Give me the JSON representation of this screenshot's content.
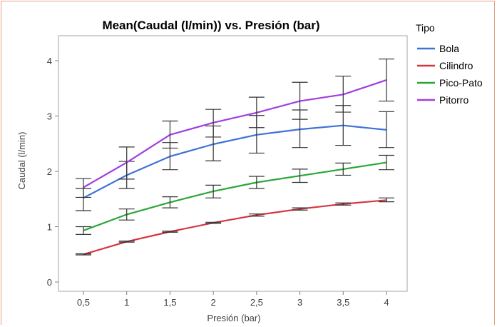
{
  "chart_data": {
    "type": "line",
    "title": "Mean(Caudal (l/min)) vs. Presión (bar)",
    "xlabel": "Presión (bar)",
    "ylabel": "Caudal (l/min)",
    "x": [
      0.5,
      1,
      1.5,
      2,
      2.5,
      3,
      3.5,
      4
    ],
    "x_tick_labels": [
      "0,5",
      "1",
      "1,5",
      "2",
      "2,5",
      "3",
      "3,5",
      "4"
    ],
    "y_ticks": [
      0,
      1,
      2,
      3,
      4
    ],
    "y_tick_labels": [
      "0",
      "1",
      "2",
      "3",
      "4"
    ],
    "xlim": [
      0.5,
      4
    ],
    "ylim": [
      0,
      4.3
    ],
    "grid": false,
    "error_bars": true,
    "legend": {
      "title": "Tipo",
      "position": "right"
    },
    "series": [
      {
        "name": "Bola",
        "color": "#3f72d6",
        "values": [
          1.52,
          1.93,
          2.27,
          2.49,
          2.66,
          2.76,
          2.83,
          2.75
        ],
        "err_low": [
          1.29,
          1.69,
          2.03,
          2.19,
          2.33,
          2.43,
          2.47,
          2.43
        ],
        "err_high": [
          1.69,
          2.18,
          2.52,
          2.82,
          3.01,
          3.11,
          3.19,
          3.08
        ]
      },
      {
        "name": "Cilindro",
        "color": "#d63440",
        "values": [
          0.5,
          0.73,
          0.91,
          1.07,
          1.21,
          1.32,
          1.41,
          1.48
        ],
        "err_low": [
          0.49,
          0.72,
          0.9,
          1.06,
          1.19,
          1.3,
          1.39,
          1.45
        ],
        "err_high": [
          0.51,
          0.74,
          0.92,
          1.08,
          1.23,
          1.34,
          1.43,
          1.52
        ]
      },
      {
        "name": "Pico-Pato",
        "color": "#2aa637",
        "values": [
          0.93,
          1.22,
          1.44,
          1.64,
          1.8,
          1.92,
          2.04,
          2.16
        ],
        "err_low": [
          0.86,
          1.12,
          1.34,
          1.52,
          1.69,
          1.8,
          1.93,
          2.03
        ],
        "err_high": [
          1.0,
          1.32,
          1.54,
          1.75,
          1.91,
          2.04,
          2.15,
          2.29
        ]
      },
      {
        "name": "Pitorro",
        "color": "#a13ee0",
        "values": [
          1.71,
          2.16,
          2.66,
          2.88,
          3.06,
          3.27,
          3.39,
          3.65
        ],
        "err_low": [
          1.53,
          1.86,
          2.42,
          2.62,
          2.79,
          2.94,
          3.07,
          3.27
        ],
        "err_high": [
          1.87,
          2.44,
          2.91,
          3.12,
          3.34,
          3.61,
          3.72,
          4.03
        ]
      }
    ]
  }
}
